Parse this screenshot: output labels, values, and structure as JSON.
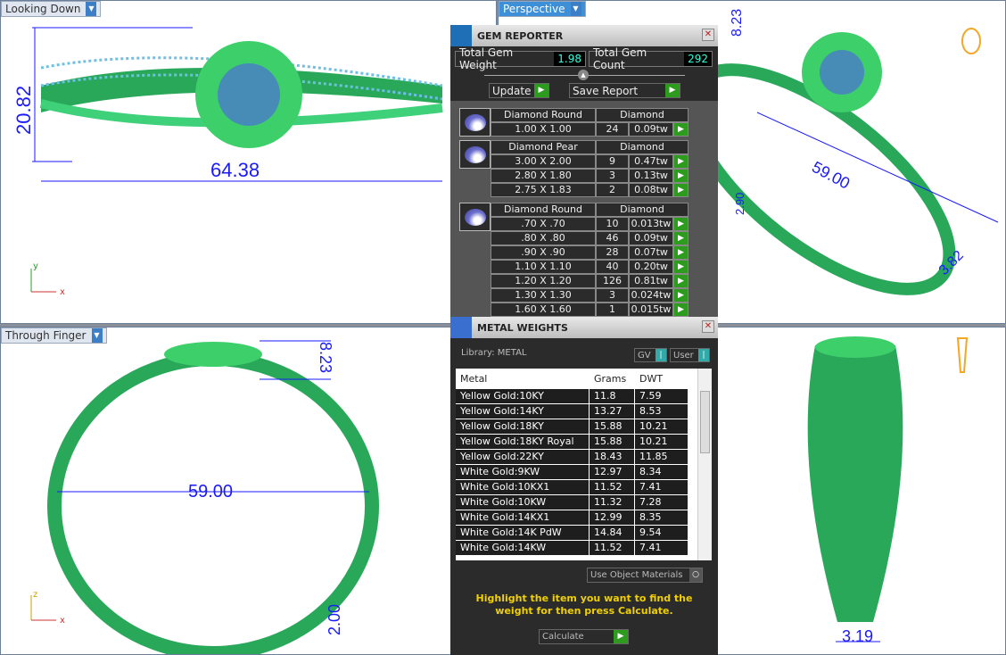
{
  "viewports": {
    "top_left": {
      "label": "Looking Down",
      "dims": [
        "20.82",
        "64.38"
      ],
      "axes": [
        "y",
        "x"
      ]
    },
    "top_right": {
      "label": "Perspective",
      "dims": [
        "8.23",
        "59.00",
        "2.90",
        "3.82"
      ]
    },
    "bottom_left": {
      "label": "Through Finger",
      "dims": [
        "8.23",
        "59.00",
        "2.00"
      ],
      "axes": [
        "z",
        "x"
      ]
    },
    "bottom_right": {
      "dims": [
        "3.19"
      ]
    }
  },
  "gem_reporter": {
    "title": "GEM REPORTER",
    "total_weight_label": "Total Gem Weight",
    "total_weight": "1.98",
    "total_count_label": "Total Gem Count",
    "total_count": "292",
    "update_label": "Update",
    "save_label": "Save Report",
    "groups": [
      {
        "shape": "Diamond Round",
        "material": "Diamond",
        "rows": [
          {
            "size": "1.00 X 1.00",
            "count": "24",
            "weight": "0.09tw"
          }
        ]
      },
      {
        "shape": "Diamond Pear",
        "material": "Diamond",
        "rows": [
          {
            "size": "3.00 X 2.00",
            "count": "9",
            "weight": "0.47tw"
          },
          {
            "size": "2.80 X 1.80",
            "count": "3",
            "weight": "0.13tw"
          },
          {
            "size": "2.75 X 1.83",
            "count": "2",
            "weight": "0.08tw"
          }
        ]
      },
      {
        "shape": "Diamond Round",
        "material": "Diamond",
        "rows": [
          {
            "size": ".70 X .70",
            "count": "10",
            "weight": "0.013tw"
          },
          {
            "size": ".80 X .80",
            "count": "46",
            "weight": "0.09tw"
          },
          {
            "size": ".90 X .90",
            "count": "28",
            "weight": "0.07tw"
          },
          {
            "size": "1.10 X 1.10",
            "count": "40",
            "weight": "0.20tw"
          },
          {
            "size": "1.20 X 1.20",
            "count": "126",
            "weight": "0.81tw"
          },
          {
            "size": "1.30 X 1.30",
            "count": "3",
            "weight": "0.024tw"
          },
          {
            "size": "1.60 X 1.60",
            "count": "1",
            "weight": "0.015tw"
          }
        ]
      }
    ]
  },
  "metal_weights": {
    "title": "METAL WEIGHTS",
    "library": "Library: METAL",
    "gv": "GV",
    "user": "User",
    "headers": [
      "Metal",
      "Grams",
      "DWT"
    ],
    "rows": [
      [
        "Yellow Gold:10KY",
        "11.8",
        "7.59"
      ],
      [
        "Yellow Gold:14KY",
        "13.27",
        "8.53"
      ],
      [
        "Yellow Gold:18KY",
        "15.88",
        "10.21"
      ],
      [
        "Yellow Gold:18KY Royal",
        "15.88",
        "10.21"
      ],
      [
        "Yellow Gold:22KY",
        "18.43",
        "11.85"
      ],
      [
        "White Gold:9KW",
        "12.97",
        "8.34"
      ],
      [
        "White Gold:10KX1",
        "11.52",
        "7.41"
      ],
      [
        "White Gold:10KW",
        "11.32",
        "7.28"
      ],
      [
        "White Gold:14KX1",
        "12.99",
        "8.35"
      ],
      [
        "White Gold:14K PdW",
        "14.84",
        "9.54"
      ],
      [
        "White Gold:14KW",
        "11.52",
        "7.41"
      ]
    ],
    "use_object_materials": "Use Object Materials",
    "instruction": "Highlight the item you want to find the weight for then press Calculate.",
    "calculate": "Calculate"
  },
  "colors": {
    "metal": "#2fbf5a",
    "gem": "#4a6fd8",
    "dimension": "#1a1aff",
    "accent_green": "#2d9b1e"
  }
}
